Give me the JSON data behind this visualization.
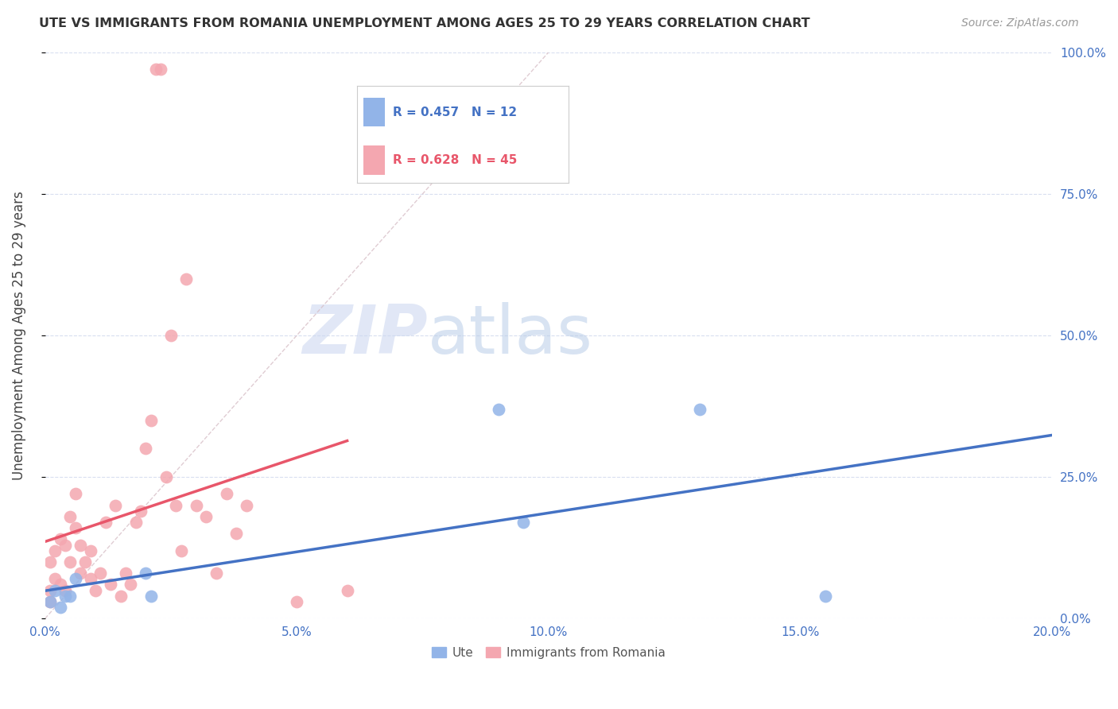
{
  "title": "UTE VS IMMIGRANTS FROM ROMANIA UNEMPLOYMENT AMONG AGES 25 TO 29 YEARS CORRELATION CHART",
  "source": "Source: ZipAtlas.com",
  "ylabel": "Unemployment Among Ages 25 to 29 years",
  "xmin": 0.0,
  "xmax": 0.2,
  "ymin": 0.0,
  "ymax": 1.0,
  "xticks": [
    0.0,
    0.05,
    0.1,
    0.15,
    0.2
  ],
  "xtick_labels": [
    "0.0%",
    "5.0%",
    "10.0%",
    "15.0%",
    "20.0%"
  ],
  "yticks": [
    0.0,
    0.25,
    0.5,
    0.75,
    1.0
  ],
  "ytick_labels": [
    "0.0%",
    "25.0%",
    "50.0%",
    "75.0%",
    "100.0%"
  ],
  "ute_scatter_x": [
    0.001,
    0.002,
    0.003,
    0.004,
    0.005,
    0.006,
    0.02,
    0.021,
    0.09,
    0.095,
    0.13,
    0.155
  ],
  "ute_scatter_y": [
    0.03,
    0.05,
    0.02,
    0.04,
    0.04,
    0.07,
    0.08,
    0.04,
    0.37,
    0.17,
    0.37,
    0.04
  ],
  "romania_scatter_x": [
    0.001,
    0.001,
    0.001,
    0.002,
    0.002,
    0.003,
    0.003,
    0.004,
    0.004,
    0.005,
    0.005,
    0.006,
    0.006,
    0.007,
    0.007,
    0.008,
    0.009,
    0.009,
    0.01,
    0.011,
    0.012,
    0.013,
    0.014,
    0.015,
    0.016,
    0.017,
    0.018,
    0.019,
    0.02,
    0.021,
    0.022,
    0.023,
    0.024,
    0.025,
    0.026,
    0.027,
    0.028,
    0.03,
    0.032,
    0.034,
    0.036,
    0.038,
    0.04,
    0.05,
    0.06
  ],
  "romania_scatter_y": [
    0.05,
    0.1,
    0.03,
    0.07,
    0.12,
    0.14,
    0.06,
    0.05,
    0.13,
    0.1,
    0.18,
    0.16,
    0.22,
    0.08,
    0.13,
    0.1,
    0.07,
    0.12,
    0.05,
    0.08,
    0.17,
    0.06,
    0.2,
    0.04,
    0.08,
    0.06,
    0.17,
    0.19,
    0.3,
    0.35,
    0.97,
    0.97,
    0.25,
    0.5,
    0.2,
    0.12,
    0.6,
    0.2,
    0.18,
    0.08,
    0.22,
    0.15,
    0.2,
    0.03,
    0.05
  ],
  "ute_color": "#92b4e8",
  "romania_color": "#f4a7b0",
  "ute_line_color": "#4472c4",
  "romania_line_color": "#e8566a",
  "ute_R": 0.457,
  "ute_N": 12,
  "romania_R": 0.628,
  "romania_N": 45,
  "watermark_zip": "ZIP",
  "watermark_atlas": "atlas",
  "scatter_size": 100,
  "background_color": "#ffffff",
  "grid_color": "#d8dff0",
  "tick_color": "#4472c4",
  "legend_label_ute": "Ute",
  "legend_label_romania": "Immigrants from Romania"
}
